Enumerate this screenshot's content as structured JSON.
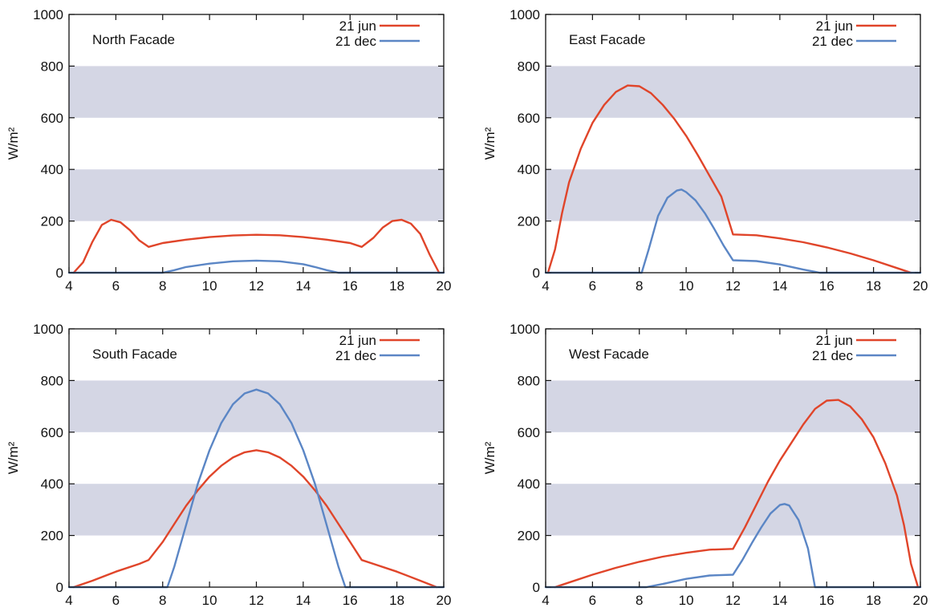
{
  "chart_data": [
    {
      "type": "line",
      "title": "North Facade",
      "ylabel": "W/m²",
      "xlim": [
        4,
        20
      ],
      "ylim": [
        0,
        1000
      ],
      "xticks": [
        4,
        6,
        8,
        10,
        12,
        14,
        16,
        18,
        20
      ],
      "yticks": [
        0,
        200,
        400,
        600,
        800,
        1000
      ],
      "bands": [
        [
          200,
          400
        ],
        [
          600,
          800
        ]
      ],
      "band_color": "#d4d6e4",
      "legend": {
        "position": "top-right"
      },
      "series": [
        {
          "name": "21  jun",
          "color": "#e0452a",
          "x": [
            4.2,
            4.6,
            5,
            5.4,
            5.8,
            6.2,
            6.6,
            7,
            7.4,
            8,
            9,
            10,
            11,
            12,
            13,
            14,
            15,
            16,
            16.5,
            17,
            17.4,
            17.8,
            18.2,
            18.6,
            19,
            19.4,
            19.8
          ],
          "y": [
            0,
            40,
            120,
            185,
            205,
            195,
            165,
            125,
            100,
            115,
            128,
            138,
            144,
            147,
            145,
            138,
            128,
            115,
            100,
            135,
            175,
            200,
            205,
            190,
            150,
            70,
            0
          ]
        },
        {
          "name": "21 dec",
          "color": "#5b86c5",
          "x": [
            4,
            8,
            8.5,
            9,
            10,
            11,
            12,
            13,
            14,
            14.5,
            15,
            15.5,
            20
          ],
          "y": [
            0,
            0,
            10,
            22,
            35,
            44,
            47,
            44,
            33,
            22,
            10,
            0,
            0
          ]
        }
      ]
    },
    {
      "type": "line",
      "title": "East Facade",
      "ylabel": "W/m²",
      "xlim": [
        4,
        20
      ],
      "ylim": [
        0,
        1000
      ],
      "xticks": [
        4,
        6,
        8,
        10,
        12,
        14,
        16,
        18,
        20
      ],
      "yticks": [
        0,
        200,
        400,
        600,
        800,
        1000
      ],
      "bands": [
        [
          200,
          400
        ],
        [
          600,
          800
        ]
      ],
      "band_color": "#d4d6e4",
      "legend": {
        "position": "top-right"
      },
      "series": [
        {
          "name": "21  jun",
          "color": "#e0452a",
          "x": [
            4.1,
            4.4,
            4.7,
            5,
            5.5,
            6,
            6.5,
            7,
            7.5,
            8,
            8.5,
            9,
            9.5,
            10,
            10.5,
            11,
            11.5,
            12,
            13,
            14,
            15,
            16,
            17,
            18,
            19,
            19.6
          ],
          "y": [
            0,
            90,
            230,
            350,
            480,
            580,
            650,
            700,
            725,
            722,
            695,
            650,
            595,
            530,
            455,
            375,
            295,
            148,
            145,
            133,
            118,
            98,
            75,
            48,
            18,
            0
          ]
        },
        {
          "name": "21 dec",
          "color": "#5b86c5",
          "x": [
            4,
            8.1,
            8.4,
            8.8,
            9.2,
            9.6,
            9.8,
            10,
            10.4,
            10.8,
            11.2,
            11.6,
            12,
            13,
            14,
            15,
            15.7,
            20
          ],
          "y": [
            0,
            0,
            90,
            220,
            290,
            318,
            322,
            312,
            280,
            230,
            170,
            105,
            48,
            45,
            32,
            12,
            0,
            0
          ]
        }
      ]
    },
    {
      "type": "line",
      "title": "South Facade",
      "ylabel": "W/m²",
      "xlim": [
        4,
        20
      ],
      "ylim": [
        0,
        1000
      ],
      "xticks": [
        4,
        6,
        8,
        10,
        12,
        14,
        16,
        18,
        20
      ],
      "yticks": [
        0,
        200,
        400,
        600,
        800,
        1000
      ],
      "bands": [
        [
          200,
          400
        ],
        [
          600,
          800
        ]
      ],
      "band_color": "#d4d6e4",
      "legend": {
        "position": "top-right"
      },
      "series": [
        {
          "name": "21  jun",
          "color": "#e0452a",
          "x": [
            4.2,
            5,
            6,
            7,
            7.4,
            8,
            8.5,
            9,
            9.5,
            10,
            10.5,
            11,
            11.5,
            12,
            12.5,
            13,
            13.5,
            14,
            14.5,
            15,
            15.5,
            16,
            16.5,
            17,
            18,
            19,
            19.7
          ],
          "y": [
            0,
            25,
            60,
            90,
            105,
            175,
            245,
            315,
            375,
            428,
            470,
            502,
            522,
            530,
            522,
            502,
            470,
            428,
            375,
            315,
            245,
            175,
            105,
            90,
            60,
            25,
            0
          ]
        },
        {
          "name": "21 dec",
          "color": "#5b86c5",
          "x": [
            4,
            8.2,
            8.5,
            9,
            9.5,
            10,
            10.5,
            11,
            11.5,
            12,
            12.5,
            13,
            13.5,
            14,
            14.5,
            15,
            15.5,
            15.8,
            20
          ],
          "y": [
            0,
            0,
            80,
            240,
            400,
            530,
            635,
            708,
            750,
            765,
            750,
            708,
            635,
            530,
            400,
            240,
            80,
            0,
            0
          ]
        }
      ]
    },
    {
      "type": "line",
      "title": "West Facade",
      "ylabel": "W/m²",
      "xlim": [
        4,
        20
      ],
      "ylim": [
        0,
        1000
      ],
      "xticks": [
        4,
        6,
        8,
        10,
        12,
        14,
        16,
        18,
        20
      ],
      "yticks": [
        0,
        200,
        400,
        600,
        800,
        1000
      ],
      "bands": [
        [
          200,
          400
        ],
        [
          600,
          800
        ]
      ],
      "band_color": "#d4d6e4",
      "legend": {
        "position": "top-right"
      },
      "series": [
        {
          "name": "21  jun",
          "color": "#e0452a",
          "x": [
            4.4,
            5,
            6,
            7,
            8,
            9,
            10,
            11,
            12,
            12.5,
            13,
            13.5,
            14,
            14.5,
            15,
            15.5,
            16,
            16.5,
            17,
            17.5,
            18,
            18.5,
            19,
            19.3,
            19.6,
            19.9
          ],
          "y": [
            0,
            18,
            48,
            75,
            98,
            118,
            133,
            145,
            148,
            230,
            320,
            410,
            490,
            560,
            630,
            690,
            722,
            725,
            700,
            650,
            580,
            480,
            355,
            240,
            90,
            0
          ]
        },
        {
          "name": "21 dec",
          "color": "#5b86c5",
          "x": [
            4,
            8.3,
            9,
            10,
            11,
            12,
            12.4,
            12.8,
            13.2,
            13.6,
            14,
            14.2,
            14.4,
            14.8,
            15.2,
            15.5,
            20
          ],
          "y": [
            0,
            0,
            12,
            32,
            45,
            48,
            105,
            170,
            230,
            285,
            318,
            322,
            316,
            260,
            150,
            0,
            0
          ]
        }
      ]
    }
  ]
}
